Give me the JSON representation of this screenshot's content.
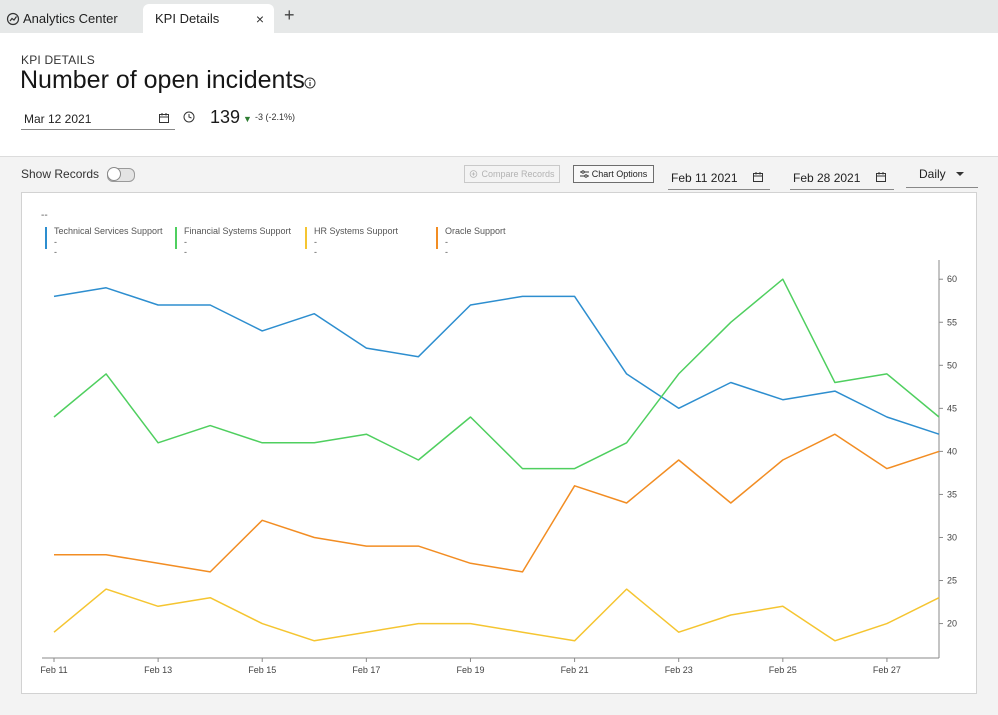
{
  "tabs": {
    "home_label": "Analytics Center",
    "active_label": "KPI Details",
    "close_glyph": "×",
    "add_glyph": "+"
  },
  "header": {
    "section_label": "KPI DETAILS",
    "title": "Number of open incidents",
    "date_value": "Mar 12 2021",
    "kpi_value": "139",
    "kpi_arrow": "▼",
    "kpi_change": "-3 (-2.1%)"
  },
  "toolbar": {
    "show_records_label": "Show Records",
    "compare_label": "Compare Records",
    "chart_options_label": "Chart Options",
    "start_date": "Feb 11 2021",
    "end_date": "Feb 28 2021",
    "interval": "Daily"
  },
  "icons": {
    "home": "analytics-home-icon",
    "info": "info-icon",
    "calendar": "calendar-icon",
    "clock": "clock-icon",
    "sliders": "sliders-icon",
    "plus_circle": "plus-circle-icon"
  },
  "legend": {
    "top_placeholder": "--",
    "items": [
      {
        "name": "Technical Services Support",
        "value": "--",
        "color": "#2d8ecf"
      },
      {
        "name": "Financial Systems Support",
        "value": "--",
        "color": "#4fcf5f"
      },
      {
        "name": "HR Systems Support",
        "value": "--",
        "color": "#f5c531"
      },
      {
        "name": "Oracle Support",
        "value": "--",
        "color": "#f28d23"
      }
    ]
  },
  "chart_data": {
    "type": "line",
    "x": [
      "Feb 11",
      "Feb 12",
      "Feb 13",
      "Feb 14",
      "Feb 15",
      "Feb 16",
      "Feb 17",
      "Feb 18",
      "Feb 19",
      "Feb 20",
      "Feb 21",
      "Feb 22",
      "Feb 23",
      "Feb 24",
      "Feb 25",
      "Feb 26",
      "Feb 27",
      "Feb 28"
    ],
    "x_tick_labels": [
      "Feb 11",
      "Feb 13",
      "Feb 15",
      "Feb 17",
      "Feb 19",
      "Feb 21",
      "Feb 23",
      "Feb 25",
      "Feb 27"
    ],
    "y_ticks": [
      20,
      25,
      30,
      35,
      40,
      45,
      50,
      55,
      60
    ],
    "ylim": [
      16,
      62
    ],
    "y_axis_side": "right",
    "grid": false,
    "legend_position": "top-left",
    "series": [
      {
        "name": "Technical Services Support",
        "color": "#2d8ecf",
        "values": [
          58,
          59,
          57,
          57,
          54,
          56,
          52,
          51,
          57,
          58,
          58,
          49,
          45,
          48,
          46,
          47,
          44,
          42
        ]
      },
      {
        "name": "Financial Systems Support",
        "color": "#4fcf5f",
        "values": [
          44,
          49,
          41,
          43,
          41,
          41,
          42,
          39,
          44,
          38,
          38,
          41,
          49,
          55,
          60,
          48,
          49,
          44
        ]
      },
      {
        "name": "HR Systems Support",
        "color": "#f5c531",
        "values": [
          19,
          24,
          22,
          23,
          20,
          18,
          19,
          20,
          20,
          19,
          18,
          24,
          19,
          21,
          22,
          18,
          20,
          23
        ]
      },
      {
        "name": "Oracle Support",
        "color": "#f28d23",
        "values": [
          28,
          28,
          27,
          26,
          32,
          30,
          29,
          29,
          27,
          26,
          36,
          34,
          39,
          34,
          39,
          42,
          38,
          40
        ]
      }
    ]
  }
}
